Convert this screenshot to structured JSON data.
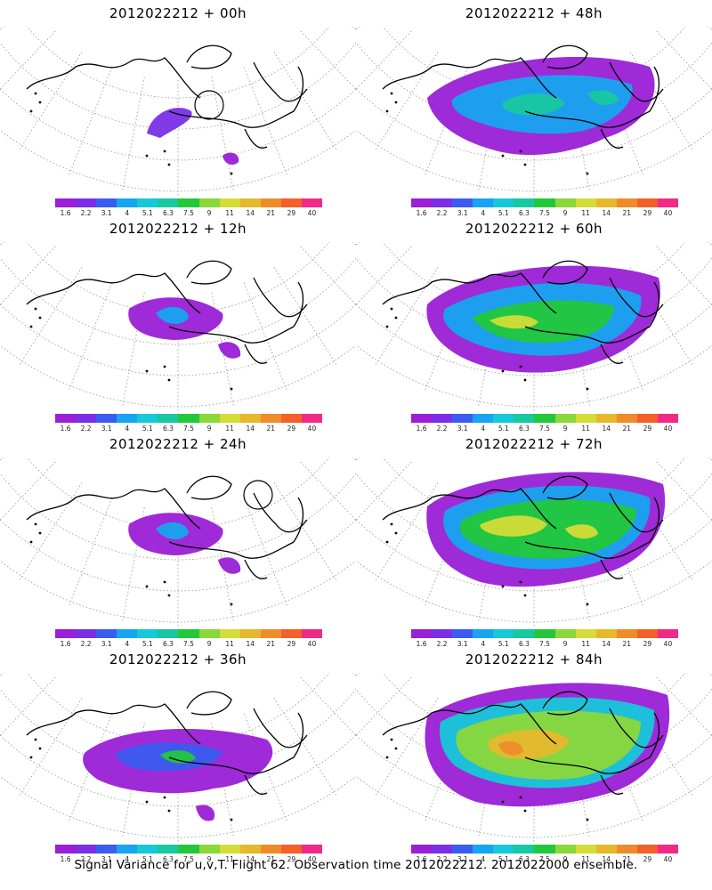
{
  "panels": [
    {
      "title": "2012022212 + 00h",
      "col": 0,
      "row": 0,
      "level": 0
    },
    {
      "title": "2012022212 + 48h",
      "col": 1,
      "row": 0,
      "level": 3
    },
    {
      "title": "2012022212 + 12h",
      "col": 0,
      "row": 1,
      "level": 1
    },
    {
      "title": "2012022212 + 60h",
      "col": 1,
      "row": 1,
      "level": 4
    },
    {
      "title": "2012022212 + 24h",
      "col": 0,
      "row": 2,
      "level": 1
    },
    {
      "title": "2012022212 + 72h",
      "col": 1,
      "row": 2,
      "level": 5
    },
    {
      "title": "2012022212 + 36h",
      "col": 0,
      "row": 3,
      "level": 2
    },
    {
      "title": "2012022212 + 84h",
      "col": 1,
      "row": 3,
      "level": 6
    }
  ],
  "colorbar": {
    "colors": [
      "#9a1fd6",
      "#7a2fe6",
      "#3a5cf0",
      "#17a4f0",
      "#16c8d8",
      "#18c8a0",
      "#22c83a",
      "#8ad83a",
      "#d4dc38",
      "#e6b82c",
      "#ee8c2a",
      "#f4602a",
      "#f02a86"
    ],
    "ticks": [
      "1.6",
      "2.2",
      "3.1",
      "4",
      "5.1",
      "6.3",
      "7.5",
      "9",
      "11",
      "14",
      "21",
      "29",
      "40"
    ]
  },
  "caption": "Signal Variance for u,v,T. Flight 62. Observation time 2012022212. 2012022000 ensemble."
}
